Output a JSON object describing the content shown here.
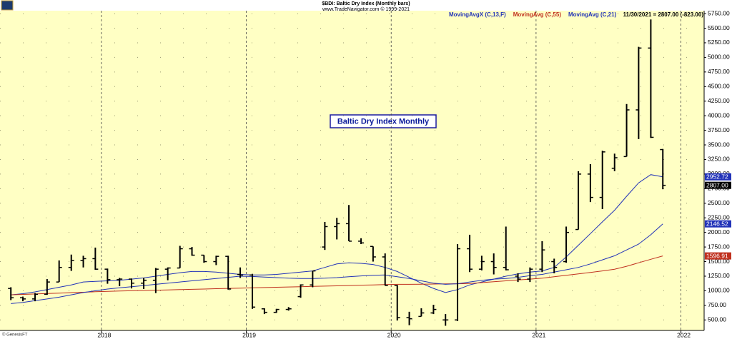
{
  "chart_data": {
    "type": "ohlc",
    "title": "$BDI: Baltic Dry Index  (Monthly bars)",
    "subtitle": "www.TradeNavigator.com © 1999-2021",
    "last_quote": "11/30/2021 = 2807.00 (-823.00)",
    "annotation": "Baltic Dry Index Monthly",
    "credit": "© GenesisFT",
    "color": "#000000",
    "x": [
      2017.375,
      2017.458,
      2017.542,
      2017.625,
      2017.708,
      2017.792,
      2017.875,
      2017.958,
      2018.042,
      2018.125,
      2018.208,
      2018.292,
      2018.375,
      2018.458,
      2018.542,
      2018.625,
      2018.708,
      2018.792,
      2018.875,
      2018.958,
      2019.042,
      2019.125,
      2019.208,
      2019.292,
      2019.375,
      2019.458,
      2019.542,
      2019.625,
      2019.708,
      2019.792,
      2019.875,
      2019.958,
      2020.042,
      2020.125,
      2020.208,
      2020.292,
      2020.375,
      2020.458,
      2020.542,
      2020.625,
      2020.708,
      2020.792,
      2020.875,
      2020.958,
      2021.042,
      2021.125,
      2021.208,
      2021.292,
      2021.375,
      2021.458,
      2021.542,
      2021.625,
      2021.708,
      2021.792,
      2021.875
    ],
    "open": [
      1040,
      880,
      860,
      940,
      1150,
      1400,
      1520,
      1550,
      1370,
      1190,
      1200,
      1130,
      1180,
      1370,
      1390,
      1720,
      1610,
      1500,
      1590,
      1280,
      1270,
      690,
      630,
      680,
      900,
      1100,
      1750,
      2100,
      2150,
      1850,
      1760,
      1580,
      1090,
      540,
      560,
      620,
      500,
      500,
      1720,
      1370,
      1500,
      1400,
      1250,
      1200,
      1370,
      1500,
      1500,
      2050,
      3000,
      2600,
      3100,
      3300,
      4100,
      5160,
      3420
    ],
    "high": [
      1060,
      900,
      960,
      1200,
      1520,
      1620,
      1600,
      1740,
      1380,
      1220,
      1210,
      1220,
      1390,
      1400,
      1770,
      1750,
      1610,
      1600,
      1600,
      1400,
      1290,
      700,
      690,
      720,
      1110,
      1340,
      2180,
      2250,
      2470,
      1900,
      1760,
      1640,
      1100,
      640,
      700,
      760,
      600,
      1800,
      1960,
      1600,
      1640,
      2100,
      1300,
      1400,
      1850,
      1550,
      2100,
      3050,
      3170,
      3400,
      3350,
      4200,
      5180,
      5650,
      3430
    ],
    "low": [
      840,
      820,
      820,
      930,
      1150,
      1340,
      1400,
      1360,
      1120,
      1080,
      1040,
      1030,
      960,
      1180,
      1390,
      1600,
      1480,
      1440,
      1020,
      1220,
      690,
      600,
      620,
      660,
      880,
      1060,
      1700,
      1880,
      1850,
      1800,
      1500,
      1090,
      490,
      410,
      560,
      600,
      400,
      480,
      1320,
      1350,
      1280,
      1350,
      1150,
      1150,
      1320,
      1300,
      1480,
      2050,
      2520,
      2400,
      3050,
      3300,
      3600,
      3620,
      2740
    ],
    "close": [
      880,
      860,
      940,
      1150,
      1400,
      1520,
      1550,
      1370,
      1190,
      1200,
      1130,
      1180,
      1370,
      1390,
      1720,
      1610,
      1500,
      1590,
      1030,
      1270,
      720,
      630,
      680,
      690,
      1100,
      1340,
      2100,
      2150,
      1850,
      1820,
      1580,
      1090,
      540,
      520,
      620,
      680,
      500,
      1720,
      1370,
      1500,
      1400,
      1360,
      1200,
      1370,
      1700,
      1400,
      2000,
      3000,
      2600,
      3380,
      3280,
      4100,
      5160,
      3630,
      2807
    ],
    "close_label": "2807.00",
    "series": [
      {
        "name": "MovingAvgX (C,13,F)",
        "color": "#2233b8",
        "values": [
          930,
          950,
          980,
          1020,
          1060,
          1100,
          1150,
          1160,
          1170,
          1180,
          1200,
          1220,
          1250,
          1280,
          1310,
          1330,
          1330,
          1320,
          1300,
          1280,
          1270,
          1270,
          1280,
          1300,
          1320,
          1340,
          1400,
          1460,
          1480,
          1470,
          1450,
          1400,
          1330,
          1230,
          1130,
          1040,
          970,
          1020,
          1100,
          1150,
          1200,
          1250,
          1290,
          1320,
          1340,
          1400,
          1580,
          1780,
          1980,
          2180,
          2380,
          2620,
          2850,
          2990,
          2952.72
        ]
      },
      {
        "name": "MovingAvg (C,55)",
        "color": "#c0301e",
        "values": [
          930,
          938,
          945,
          953,
          960,
          968,
          975,
          983,
          990,
          995,
          1000,
          1005,
          1010,
          1015,
          1020,
          1025,
          1030,
          1035,
          1040,
          1045,
          1050,
          1055,
          1060,
          1065,
          1070,
          1075,
          1080,
          1085,
          1090,
          1095,
          1100,
          1105,
          1110,
          1110,
          1112,
          1115,
          1118,
          1120,
          1125,
          1140,
          1155,
          1170,
          1185,
          1200,
          1215,
          1240,
          1265,
          1290,
          1315,
          1340,
          1370,
          1420,
          1480,
          1540,
          1596.91
        ]
      },
      {
        "name": "MovingAvg (C,21)",
        "color": "#2233b8",
        "values": [
          780,
          800,
          830,
          860,
          890,
          930,
          970,
          1000,
          1030,
          1050,
          1070,
          1090,
          1110,
          1130,
          1150,
          1170,
          1190,
          1210,
          1230,
          1250,
          1245,
          1235,
          1225,
          1215,
          1210,
          1210,
          1215,
          1225,
          1240,
          1255,
          1265,
          1270,
          1240,
          1210,
          1170,
          1130,
          1110,
          1120,
          1150,
          1180,
          1200,
          1210,
          1230,
          1260,
          1280,
          1320,
          1360,
          1400,
          1460,
          1530,
          1600,
          1700,
          1800,
          1960,
          2146.52
        ]
      }
    ],
    "xlim": [
      2017.3,
      2022.16
    ],
    "xticks": [
      2018,
      2019,
      2020,
      2021,
      2022
    ],
    "ylim": [
      320,
      5800
    ],
    "yticks": [
      {
        "value": 500,
        "label": "500.00"
      },
      {
        "value": 750,
        "label": "750.00"
      },
      {
        "value": 1000,
        "label": "1000.00"
      },
      {
        "value": 1250,
        "label": "1250.00"
      },
      {
        "value": 1500,
        "label": "1500.00"
      },
      {
        "value": 1750,
        "label": "1750.00"
      },
      {
        "value": 2000,
        "label": "2000.00"
      },
      {
        "value": 2250,
        "label": "2250.00"
      },
      {
        "value": 2500,
        "label": "2500.00"
      },
      {
        "value": 2750,
        "label": "2750.00"
      },
      {
        "value": 3000,
        "label": "3000.00"
      },
      {
        "value": 3250,
        "label": "3250.00"
      },
      {
        "value": 3500,
        "label": "3500.00"
      },
      {
        "value": 3750,
        "label": "3750.00"
      },
      {
        "value": 4000,
        "label": "4000.00"
      },
      {
        "value": 4250,
        "label": "4250.00"
      },
      {
        "value": 4500,
        "label": "4500.00"
      },
      {
        "value": 4750,
        "label": "4750.00"
      },
      {
        "value": 5000,
        "label": "5000.00"
      },
      {
        "value": 5250,
        "label": "5250.00"
      },
      {
        "value": 5500,
        "label": "5500.00"
      },
      {
        "value": 5750,
        "label": "5750.00"
      }
    ],
    "grid": true
  }
}
